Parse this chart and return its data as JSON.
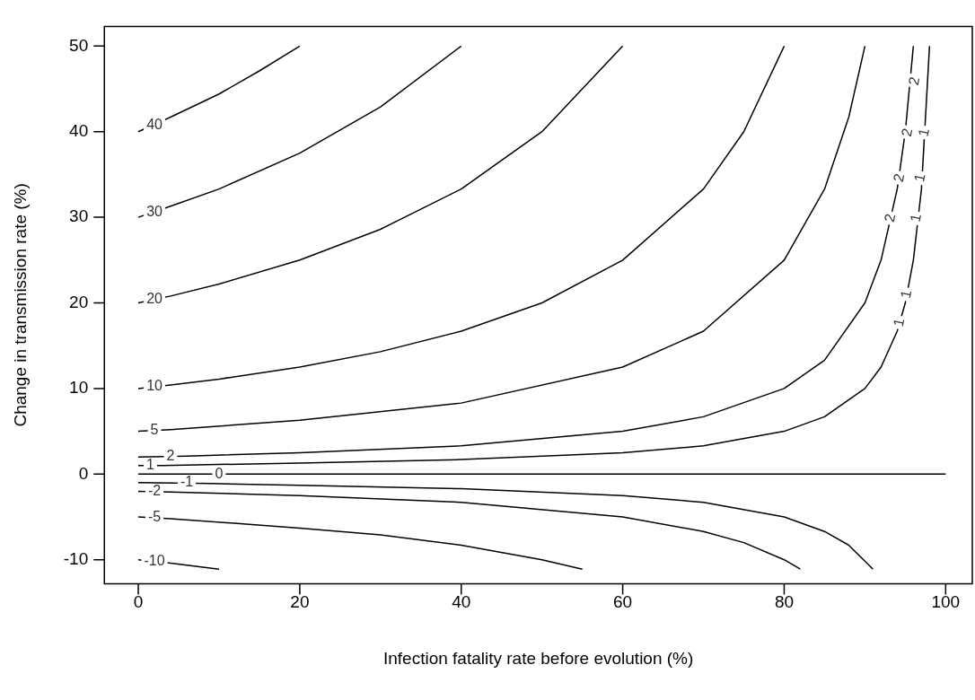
{
  "chart_data": {
    "type": "line",
    "xlabel": "Infection fatality rate before evolution (%)",
    "ylabel": "Change in transmission rate (%)",
    "xlim": [
      -4.2,
      103.3
    ],
    "ylim": [
      -12.8,
      52.3
    ],
    "xticks": [
      0,
      20,
      40,
      60,
      80,
      100
    ],
    "yticks": [
      -10,
      0,
      10,
      20,
      30,
      40,
      50
    ],
    "grid": false,
    "legend": false,
    "marker": "none",
    "line_style": "solid",
    "series": [
      {
        "color": "#000000",
        "x": [
          0,
          4,
          10,
          15,
          20
        ],
        "values": [
          40,
          41.7,
          44.4,
          47.1,
          50.0
        ]
      },
      {
        "color": "#000000",
        "x": [
          0,
          4,
          10,
          20,
          30,
          40
        ],
        "values": [
          30,
          31.3,
          33.3,
          37.5,
          42.9,
          50.0
        ]
      },
      {
        "color": "#000000",
        "x": [
          0,
          4,
          10,
          20,
          30,
          40,
          50,
          60
        ],
        "values": [
          20,
          20.8,
          22.2,
          25,
          28.6,
          33.3,
          40,
          50
        ]
      },
      {
        "color": "#000000",
        "x": [
          0,
          4,
          10,
          20,
          30,
          40,
          50,
          60,
          70,
          75,
          80
        ],
        "values": [
          10,
          10.4,
          11.1,
          12.5,
          14.3,
          16.7,
          20,
          25,
          33.3,
          40,
          50
        ]
      },
      {
        "color": "#000000",
        "x": [
          0,
          4,
          20,
          40,
          60,
          70,
          80,
          85,
          88,
          90
        ],
        "values": [
          5,
          5.2,
          6.3,
          8.3,
          12.5,
          16.7,
          25,
          33.3,
          41.7,
          50
        ]
      },
      {
        "color": "#000000",
        "x": [
          0,
          6,
          20,
          40,
          60,
          70,
          80,
          85,
          90,
          92,
          94,
          95,
          96
        ],
        "values": [
          2,
          2.1,
          2.5,
          3.3,
          5,
          6.7,
          10,
          13.3,
          20,
          25,
          33.3,
          40,
          50
        ]
      },
      {
        "color": "#000000",
        "x": [
          0,
          3,
          20,
          40,
          60,
          70,
          80,
          85,
          90,
          92,
          94,
          95,
          96,
          97,
          98
        ],
        "values": [
          1,
          1.0,
          1.3,
          1.7,
          2.5,
          3.3,
          5,
          6.7,
          10,
          12.5,
          16.7,
          20,
          25,
          33.3,
          50
        ]
      },
      {
        "color": "#000000",
        "x": [
          0,
          100
        ],
        "values": [
          0,
          0
        ]
      },
      {
        "color": "#000000",
        "x": [
          0,
          9,
          20,
          40,
          60,
          70,
          80,
          85,
          88,
          91
        ],
        "values": [
          -1,
          -1.1,
          -1.3,
          -1.7,
          -2.5,
          -3.3,
          -5,
          -6.7,
          -8.3,
          -11.1
        ]
      },
      {
        "color": "#000000",
        "x": [
          0,
          4,
          20,
          40,
          60,
          70,
          75,
          80,
          82
        ],
        "values": [
          -2,
          -2.1,
          -2.5,
          -3.3,
          -5,
          -6.7,
          -8,
          -10,
          -11.1
        ]
      },
      {
        "color": "#000000",
        "x": [
          0,
          4,
          20,
          30,
          40,
          50,
          55
        ],
        "values": [
          -5,
          -5.2,
          -6.3,
          -7.1,
          -8.3,
          -10,
          -11.1
        ]
      },
      {
        "color": "#000000",
        "x": [
          0,
          4,
          10
        ],
        "values": [
          -10,
          -10.4,
          -11.1
        ]
      }
    ],
    "annotations": [
      {
        "text": "40",
        "x": 2,
        "y": 40.8
      },
      {
        "text": "30",
        "x": 2,
        "y": 30.6
      },
      {
        "text": "20",
        "x": 2,
        "y": 20.4
      },
      {
        "text": "10",
        "x": 2,
        "y": 10.2
      },
      {
        "text": "5",
        "x": 2,
        "y": 5.1
      },
      {
        "text": "2",
        "x": 4,
        "y": 2.1
      },
      {
        "text": "1",
        "x": 1.5,
        "y": 1.0
      },
      {
        "text": "0",
        "x": 10,
        "y": 0
      },
      {
        "text": "-1",
        "x": 6,
        "y": -1.0
      },
      {
        "text": "-2",
        "x": 2,
        "y": -2.0
      },
      {
        "text": "-5",
        "x": 2,
        "y": -5.1
      },
      {
        "text": "-10",
        "x": 2,
        "y": -10.2
      },
      {
        "text": "2",
        "x": 96.2,
        "y": 45.9
      },
      {
        "text": "2",
        "x": 95.3,
        "y": 39.9
      },
      {
        "text": "2",
        "x": 94.3,
        "y": 34.6
      },
      {
        "text": "2",
        "x": 93.2,
        "y": 29.9
      },
      {
        "text": "1",
        "x": 97.4,
        "y": 39.9
      },
      {
        "text": "1",
        "x": 96.9,
        "y": 34.6
      },
      {
        "text": "1",
        "x": 96.4,
        "y": 29.9
      },
      {
        "text": "1",
        "x": 95.2,
        "y": 21.0
      },
      {
        "text": "1",
        "x": 94.3,
        "y": 17.7
      }
    ]
  }
}
